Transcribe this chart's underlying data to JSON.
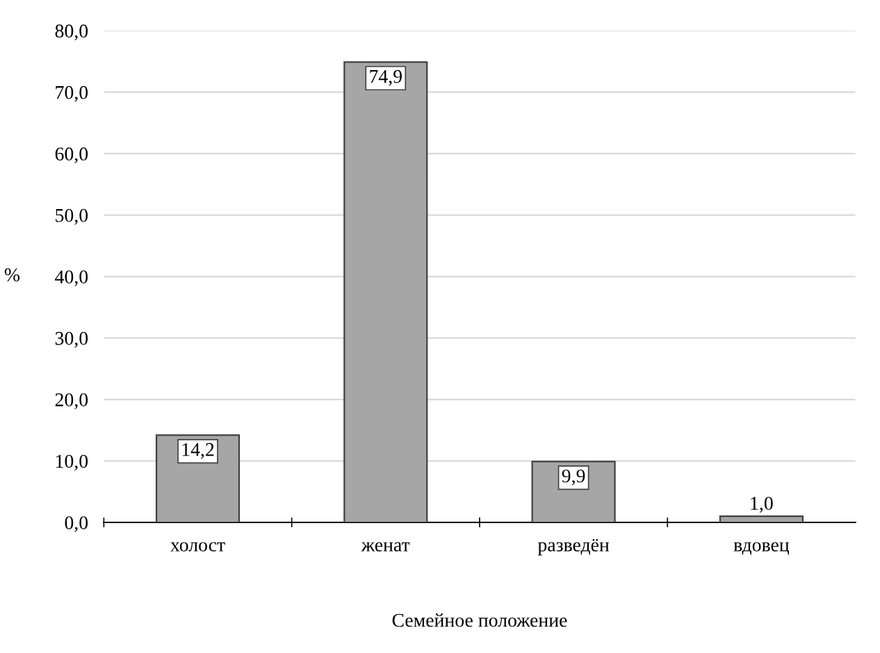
{
  "chart_data": {
    "type": "bar",
    "xlabel": "Семейное положение",
    "ylabel": "%",
    "categories": [
      "холост",
      "женат",
      "разведён",
      "вдовец"
    ],
    "values": [
      14.2,
      74.9,
      9.9,
      1.0
    ],
    "value_labels": [
      "14,2",
      "74,9",
      "9,9",
      "1,0"
    ],
    "color": "#a6a6a6",
    "ylim": [
      0,
      80
    ],
    "yticks": [
      {
        "value": 0,
        "label": "0,0"
      },
      {
        "value": 10,
        "label": "10,0"
      },
      {
        "value": 20,
        "label": "20,0"
      },
      {
        "value": 30,
        "label": "30,0"
      },
      {
        "value": 40,
        "label": "40,0"
      },
      {
        "value": 50,
        "label": "50,0"
      },
      {
        "value": 60,
        "label": "60,0"
      },
      {
        "value": 70,
        "label": "70,0"
      },
      {
        "value": 80,
        "label": "80,0"
      }
    ],
    "grid": "y"
  }
}
